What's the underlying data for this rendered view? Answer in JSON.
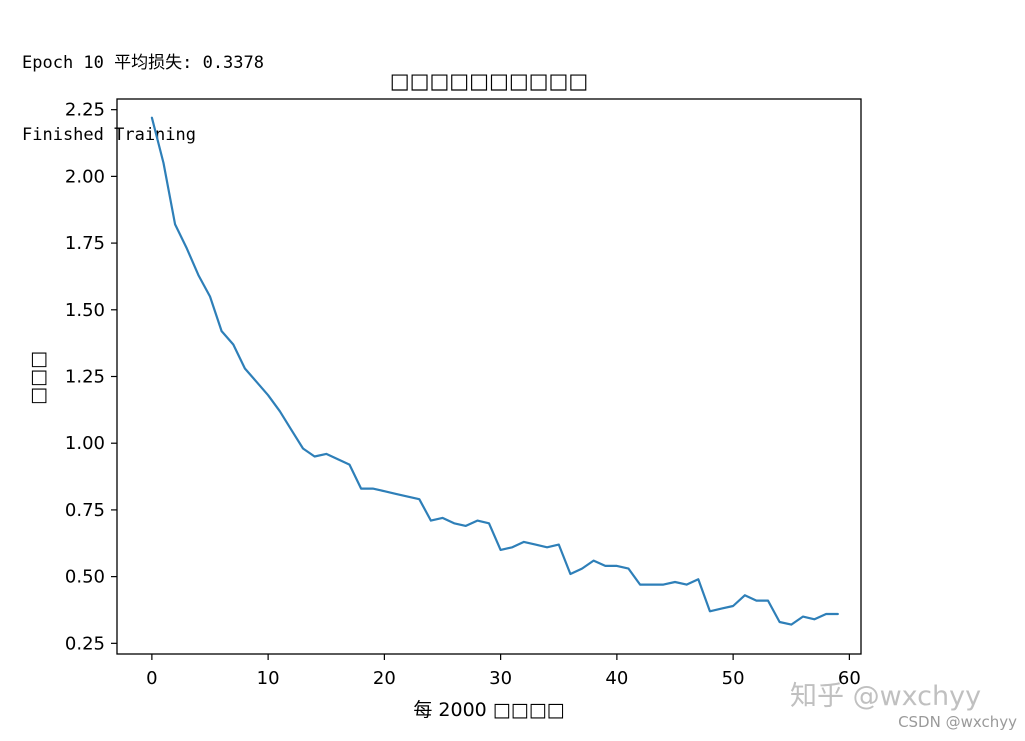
{
  "console": {
    "line1": "Epoch 10 平均损失: 0.3378",
    "line2": "Finished Training"
  },
  "watermark": {
    "main": "知乎 @wxchyy",
    "sub": "CSDN @wxchyy"
  },
  "chart_data": {
    "type": "line",
    "title": "□□□□□□□□□□",
    "xlabel": "每 2000 □□□□",
    "ylabel": "□□□",
    "xlim": [
      -3,
      61
    ],
    "ylim": [
      0.21,
      2.29
    ],
    "xticks": [
      0,
      10,
      20,
      30,
      40,
      50,
      60
    ],
    "xtick_labels": [
      "0",
      "10",
      "20",
      "30",
      "40",
      "50",
      "60"
    ],
    "yticks": [
      0.25,
      0.5,
      0.75,
      1.0,
      1.25,
      1.5,
      1.75,
      2.0,
      2.25
    ],
    "ytick_labels": [
      "0.25",
      "0.50",
      "0.75",
      "1.00",
      "1.25",
      "1.50",
      "1.75",
      "2.00",
      "2.25"
    ],
    "grid": false,
    "line_color": "#2e7fb8",
    "series": [
      {
        "x": [
          0,
          1,
          2,
          3,
          4,
          5,
          6,
          7,
          8,
          9,
          10,
          11,
          12,
          13,
          14,
          15,
          16,
          17,
          18,
          19,
          20,
          21,
          22,
          23,
          24,
          25,
          26,
          27,
          28,
          29,
          30,
          31,
          32,
          33,
          34,
          35,
          36,
          37,
          38,
          39,
          40,
          41,
          42,
          43,
          44,
          45,
          46,
          47,
          48,
          49,
          50,
          51,
          52,
          53,
          54,
          55,
          56,
          57,
          58,
          59
        ],
        "values": [
          2.22,
          2.05,
          1.82,
          1.73,
          1.63,
          1.55,
          1.42,
          1.37,
          1.28,
          1.23,
          1.18,
          1.12,
          1.05,
          0.98,
          0.95,
          0.96,
          0.94,
          0.92,
          0.83,
          0.83,
          0.82,
          0.81,
          0.8,
          0.79,
          0.71,
          0.72,
          0.7,
          0.69,
          0.71,
          0.7,
          0.6,
          0.61,
          0.63,
          0.62,
          0.61,
          0.62,
          0.51,
          0.53,
          0.56,
          0.54,
          0.54,
          0.53,
          0.47,
          0.47,
          0.47,
          0.48,
          0.47,
          0.49,
          0.37,
          0.38,
          0.39,
          0.43,
          0.41,
          0.41,
          0.33,
          0.32,
          0.35,
          0.34,
          0.36,
          0.36
        ]
      }
    ]
  }
}
